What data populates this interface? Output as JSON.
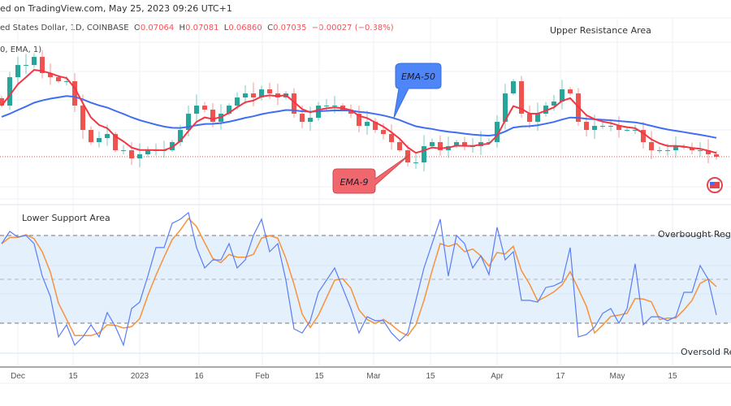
{
  "header": {
    "published": "ed on TradingView.com, May 25, 2023 09:26 UTC+1"
  },
  "symbol": {
    "name": "ed States Dollar, 1D, COINBASE",
    "open_label": "O",
    "open": "0.07064",
    "high_label": "H",
    "high": "0.07081",
    "low_label": "L",
    "low": "0.06860",
    "close_label": "C",
    "close": "0.07035",
    "change": "−0.00027 (−0.38%)"
  },
  "indicator_label": "0, EMA, 1)",
  "annotations": {
    "upper_resistance": "Upper Resistance Area",
    "lower_support": "Lower Support Area",
    "overbought": "Overbought Regio",
    "oversold": "Oversold Re",
    "ema50": "EMA-50",
    "ema9": "EMA-9"
  },
  "colors": {
    "up": "#26a69a",
    "down": "#ef5350",
    "ema9": "#f23645",
    "ema50": "#3f6ef2",
    "stoch_k": "#5b7cf7",
    "stoch_d": "#f7923b",
    "band": "#e4f1fd",
    "ema50_callout": "#4f86f7",
    "ema9_callout": "#f0686e"
  },
  "chart_data": [
    {
      "type": "candlestick",
      "interval": "1D",
      "x_ticks": [
        "Dec",
        "15",
        "2023",
        "16",
        "Feb",
        "15",
        "Mar",
        "15",
        "Apr",
        "17",
        "May",
        "15"
      ],
      "closes": [
        0.0842,
        0.0919,
        0.0952,
        0.0952,
        0.0974,
        0.093,
        0.0919,
        0.0908,
        0.0908,
        0.0842,
        0.0776,
        0.0743,
        0.0754,
        0.0765,
        0.0721,
        0.0721,
        0.0699,
        0.071,
        0.0721,
        0.0721,
        0.0721,
        0.0743,
        0.0776,
        0.082,
        0.0842,
        0.0831,
        0.0798,
        0.082,
        0.0842,
        0.0864,
        0.0875,
        0.0864,
        0.0886,
        0.0875,
        0.0864,
        0.0875,
        0.082,
        0.0798,
        0.0809,
        0.0842,
        0.0842,
        0.0842,
        0.0831,
        0.082,
        0.0787,
        0.0798,
        0.0776,
        0.0765,
        0.0743,
        0.0721,
        0.0688,
        0.0688,
        0.0732,
        0.0743,
        0.0721,
        0.0732,
        0.0743,
        0.0732,
        0.0732,
        0.0743,
        0.0743,
        0.0798,
        0.0875,
        0.0908,
        0.082,
        0.0798,
        0.082,
        0.0842,
        0.0853,
        0.0886,
        0.0875,
        0.0798,
        0.0776,
        0.0787,
        0.0787,
        0.0787,
        0.0776,
        0.0776,
        0.0776,
        0.0743,
        0.0721,
        0.0721,
        0.0721,
        0.0732,
        0.0728,
        0.0721,
        0.0721,
        0.071,
        0.07035
      ],
      "last_price": 0.07035,
      "overlays": [
        "EMA-9",
        "EMA-50"
      ]
    },
    {
      "type": "line",
      "indicator": "stochastic",
      "k_values": [
        74.4,
        82.8,
        78.9,
        80,
        74.4,
        52.2,
        38.3,
        10.6,
        18.9,
        5,
        10.6,
        18.9,
        10.6,
        27.2,
        17.8,
        5,
        30,
        34.4,
        52.2,
        71.7,
        71.7,
        88.3,
        91.1,
        95.6,
        71.7,
        57.8,
        63.3,
        63.3,
        74.4,
        57.8,
        63.3,
        80,
        91.1,
        68.9,
        74.4,
        49.4,
        16.1,
        13.3,
        21.7,
        41.1,
        49.4,
        57.8,
        43.9,
        30,
        13.3,
        24.4,
        21.7,
        21.7,
        13.3,
        7.8,
        13.3,
        35.6,
        57.8,
        74.4,
        91.1,
        52.2,
        80,
        74.4,
        57.8,
        66.1,
        53.3,
        85.6,
        63.3,
        68.9,
        35.6,
        35.6,
        34.4,
        44.4,
        45.6,
        48.3,
        71.7,
        10.6,
        12.2,
        17.2,
        26.7,
        30,
        20,
        30,
        60.6,
        18.9,
        24.4,
        24.4,
        21.7,
        24.4,
        41.1,
        41.1,
        59.4,
        50,
        25.6
      ],
      "levels": {
        "overbought": 80,
        "middle": 50,
        "oversold": 20
      },
      "ylim": [
        0,
        100
      ]
    }
  ]
}
